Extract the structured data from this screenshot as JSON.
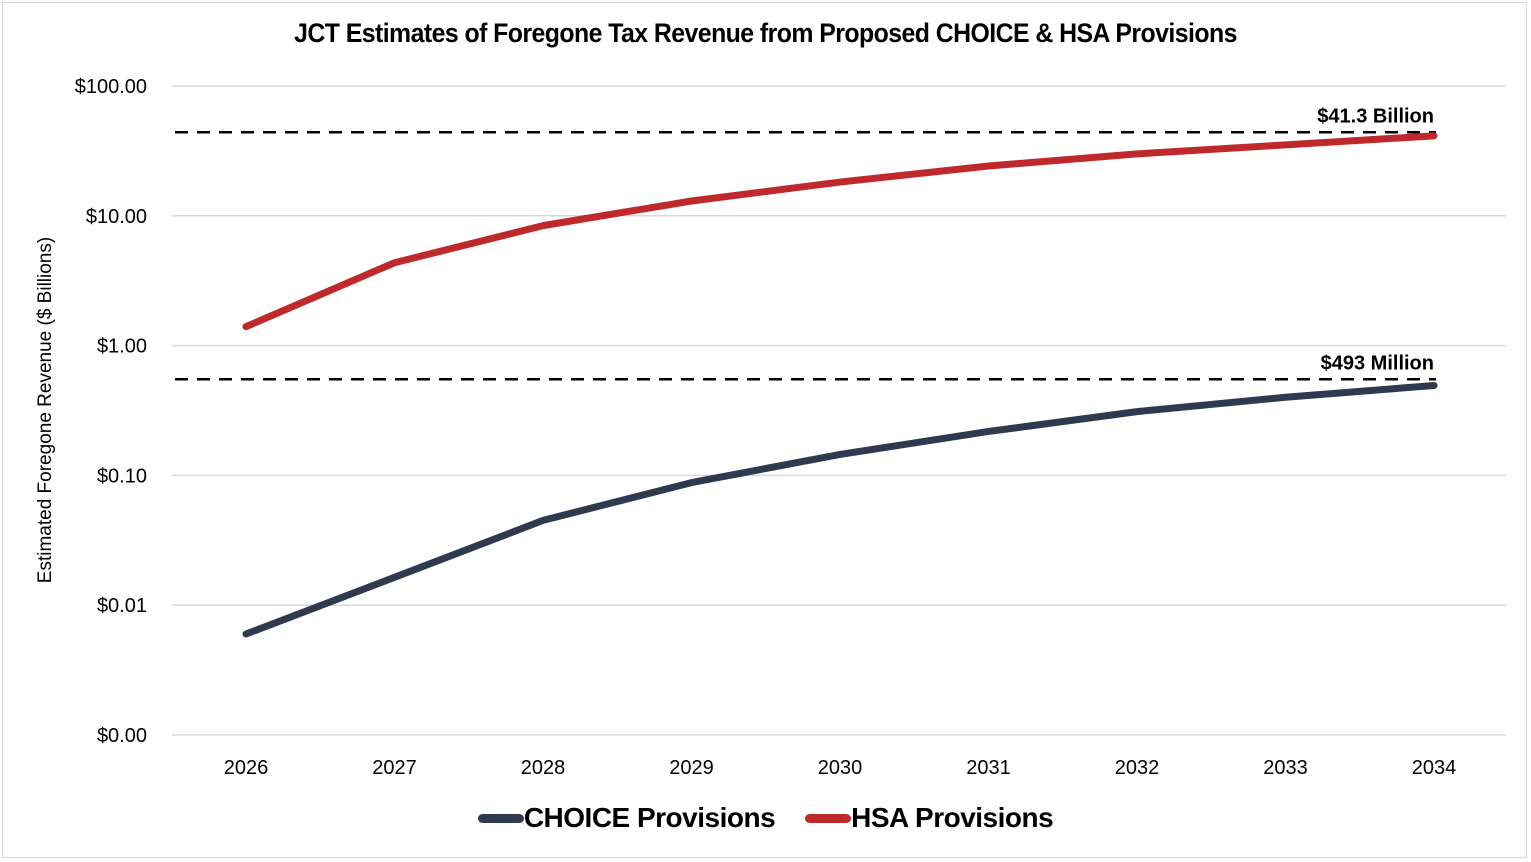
{
  "chart_data": {
    "type": "line",
    "title": "JCT Estimates of Foregone Tax Revenue from Proposed CHOICE & HSA Provisions",
    "xlabel": "",
    "ylabel": "Estimated Foregone Revenue ($ Billions)",
    "yscale": "log",
    "ylim": [
      0.001,
      100
    ],
    "y_ticks": [
      {
        "value": 100,
        "label": "$100.00"
      },
      {
        "value": 10,
        "label": "$10.00"
      },
      {
        "value": 1,
        "label": "$1.00"
      },
      {
        "value": 0.1,
        "label": "$0.10"
      },
      {
        "value": 0.01,
        "label": "$0.01"
      },
      {
        "value": 0.001,
        "label": "$0.00"
      }
    ],
    "grid": true,
    "x": [
      "2026",
      "2027",
      "2028",
      "2029",
      "2030",
      "2031",
      "2032",
      "2033",
      "2034"
    ],
    "series": [
      {
        "name": "CHOICE Provisions",
        "color": "#2f3a4f",
        "values": [
          0.006,
          0.0164,
          0.045,
          0.088,
          0.145,
          0.218,
          0.31,
          0.4,
          0.493
        ]
      },
      {
        "name": "HSA Provisions",
        "color": "#c0292b",
        "values": [
          1.4,
          4.35,
          8.4,
          13.0,
          18.2,
          24.2,
          30.0,
          35.2,
          41.3
        ]
      }
    ],
    "annotations": [
      {
        "text": "$41.3 Billion",
        "reference_value": 44,
        "style": "dashed-line"
      },
      {
        "text": "$493 Million",
        "reference_value": 0.55,
        "style": "dashed-line"
      }
    ],
    "legend": {
      "position": "bottom",
      "entries": [
        "CHOICE Provisions",
        "HSA Provisions"
      ]
    }
  }
}
